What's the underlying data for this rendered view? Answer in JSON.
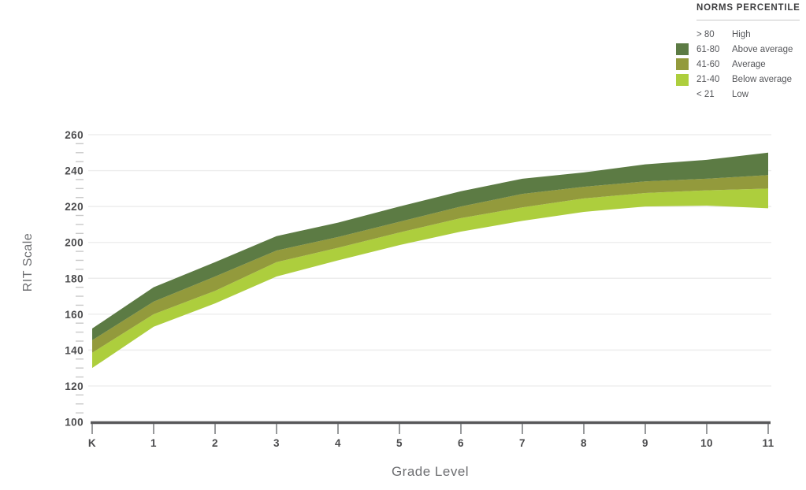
{
  "legend": {
    "title": "NORMS PERCENTILE",
    "items": [
      {
        "range": "> 80",
        "label": "High",
        "swatch": null
      },
      {
        "range": "61-80",
        "label": "Above average",
        "swatch": "#5c7b44"
      },
      {
        "range": "41-60",
        "label": "Average",
        "swatch": "#939a3c"
      },
      {
        "range": "21-40",
        "label": "Below average",
        "swatch": "#adce3d"
      },
      {
        "range": "< 21",
        "label": "Low",
        "swatch": null
      }
    ]
  },
  "chart_data": {
    "type": "area",
    "title": "",
    "xlabel": "Grade Level",
    "ylabel": "RIT Scale",
    "x_categories": [
      "K",
      "1",
      "2",
      "3",
      "4",
      "5",
      "6",
      "7",
      "8",
      "9",
      "10",
      "11"
    ],
    "ylim": [
      100,
      260
    ],
    "y_major_ticks": [
      260,
      240,
      220,
      200,
      180,
      160,
      140,
      120,
      100
    ],
    "y_minor_step": 5,
    "grid": "horizontal major gridlines, light gray",
    "legend_position": "top-right",
    "bands": [
      {
        "key": "band-21-40",
        "name": "21-40 Below average",
        "lower": "p21",
        "upper": "p41",
        "color": "#adce3d"
      },
      {
        "key": "band-41-60",
        "name": "41-60 Average",
        "lower": "p41",
        "upper": "p61",
        "color": "#939a3c"
      },
      {
        "key": "band-61-80",
        "name": "61-80 Above average",
        "lower": "p61",
        "upper": "p80",
        "color": "#5c7b44"
      }
    ],
    "series": {
      "p21": [
        130,
        153,
        166,
        181,
        190,
        198.5,
        206,
        212,
        217,
        220,
        220.5,
        219
      ],
      "p41": [
        138.5,
        160,
        173,
        189,
        197,
        205.5,
        213.5,
        219.5,
        224.5,
        227.5,
        229,
        230
      ],
      "p61": [
        145.5,
        167,
        181,
        195.5,
        203,
        211.5,
        220,
        227,
        231,
        234,
        235.5,
        237.5
      ],
      "p80": [
        152,
        175,
        189,
        203.5,
        211,
        220,
        228.5,
        235.5,
        239,
        243.5,
        246,
        250
      ]
    }
  }
}
